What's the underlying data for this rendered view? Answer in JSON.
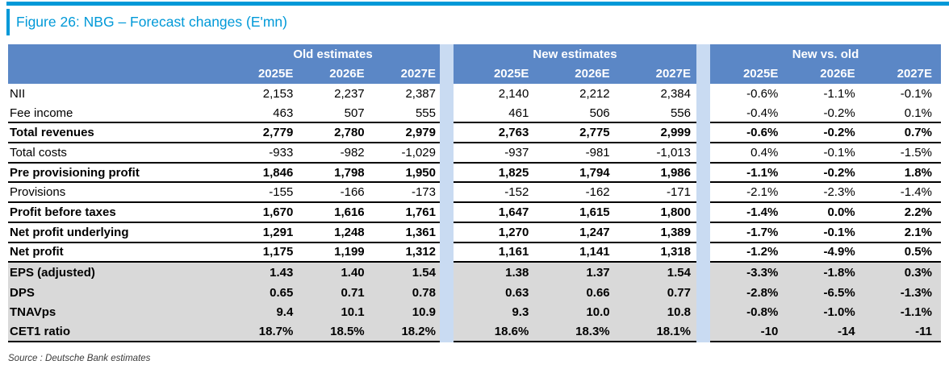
{
  "figure": {
    "title": "Figure 26: NBG – Forecast changes (E'mn)",
    "source": "Source : Deutsche Bank estimates"
  },
  "colors": {
    "accent_blue": "#0099D8",
    "header_blue": "#5B87C6",
    "divider_blue": "#C9DBF2",
    "section_gray": "#D9D9D9",
    "rule_black": "#000000"
  },
  "table": {
    "groups": [
      {
        "label": "Old estimates",
        "years": [
          "2025E",
          "2026E",
          "2027E"
        ]
      },
      {
        "label": "New estimates",
        "years": [
          "2025E",
          "2026E",
          "2027E"
        ]
      },
      {
        "label": "New vs. old",
        "years": [
          "2025E",
          "2026E",
          "2027E"
        ]
      }
    ],
    "rows": [
      {
        "label": "NII",
        "bold": false,
        "gray": false,
        "rule": false,
        "old": [
          "2,153",
          "2,237",
          "2,387"
        ],
        "new": [
          "2,140",
          "2,212",
          "2,384"
        ],
        "delta": [
          "-0.6%",
          "-1.1%",
          "-0.1%"
        ]
      },
      {
        "label": "Fee income",
        "bold": false,
        "gray": false,
        "rule": true,
        "old": [
          "463",
          "507",
          "555"
        ],
        "new": [
          "461",
          "506",
          "556"
        ],
        "delta": [
          "-0.4%",
          "-0.2%",
          "0.1%"
        ]
      },
      {
        "label": "Total revenues",
        "bold": true,
        "gray": false,
        "rule": true,
        "old": [
          "2,779",
          "2,780",
          "2,979"
        ],
        "new": [
          "2,763",
          "2,775",
          "2,999"
        ],
        "delta": [
          "-0.6%",
          "-0.2%",
          "0.7%"
        ]
      },
      {
        "label": "Total costs",
        "bold": false,
        "gray": false,
        "rule": true,
        "old": [
          "-933",
          "-982",
          "-1,029"
        ],
        "new": [
          "-937",
          "-981",
          "-1,013"
        ],
        "delta": [
          "0.4%",
          "-0.1%",
          "-1.5%"
        ]
      },
      {
        "label": "Pre provisioning profit",
        "bold": true,
        "gray": false,
        "rule": true,
        "old": [
          "1,846",
          "1,798",
          "1,950"
        ],
        "new": [
          "1,825",
          "1,794",
          "1,986"
        ],
        "delta": [
          "-1.1%",
          "-0.2%",
          "1.8%"
        ]
      },
      {
        "label": "Provisions",
        "bold": false,
        "gray": false,
        "rule": true,
        "old": [
          "-155",
          "-166",
          "-173"
        ],
        "new": [
          "-152",
          "-162",
          "-171"
        ],
        "delta": [
          "-2.1%",
          "-2.3%",
          "-1.4%"
        ]
      },
      {
        "label": "Profit before taxes",
        "bold": true,
        "gray": false,
        "rule": true,
        "old": [
          "1,670",
          "1,616",
          "1,761"
        ],
        "new": [
          "1,647",
          "1,615",
          "1,800"
        ],
        "delta": [
          "-1.4%",
          "0.0%",
          "2.2%"
        ]
      },
      {
        "label": "Net profit underlying",
        "bold": true,
        "gray": false,
        "rule": true,
        "old": [
          "1,291",
          "1,248",
          "1,361"
        ],
        "new": [
          "1,270",
          "1,247",
          "1,389"
        ],
        "delta": [
          "-1.7%",
          "-0.1%",
          "2.1%"
        ]
      },
      {
        "label": "Net profit",
        "bold": true,
        "gray": false,
        "rule": true,
        "old": [
          "1,175",
          "1,199",
          "1,312"
        ],
        "new": [
          "1,161",
          "1,141",
          "1,318"
        ],
        "delta": [
          "-1.2%",
          "-4.9%",
          "0.5%"
        ]
      },
      {
        "label": "EPS (adjusted)",
        "bold": true,
        "gray": true,
        "rule": false,
        "old": [
          "1.43",
          "1.40",
          "1.54"
        ],
        "new": [
          "1.38",
          "1.37",
          "1.54"
        ],
        "delta": [
          "-3.3%",
          "-1.8%",
          "0.3%"
        ]
      },
      {
        "label": "DPS",
        "bold": true,
        "gray": true,
        "rule": false,
        "old": [
          "0.65",
          "0.71",
          "0.78"
        ],
        "new": [
          "0.63",
          "0.66",
          "0.77"
        ],
        "delta": [
          "-2.8%",
          "-6.5%",
          "-1.3%"
        ]
      },
      {
        "label": "TNAVps",
        "bold": true,
        "gray": true,
        "rule": false,
        "old": [
          "9.4",
          "10.1",
          "10.9"
        ],
        "new": [
          "9.3",
          "10.0",
          "10.8"
        ],
        "delta": [
          "-0.8%",
          "-1.0%",
          "-1.1%"
        ]
      },
      {
        "label": "CET1 ratio",
        "bold": true,
        "gray": true,
        "rule": true,
        "old": [
          "18.7%",
          "18.5%",
          "18.2%"
        ],
        "new": [
          "18.6%",
          "18.3%",
          "18.1%"
        ],
        "delta": [
          "-10",
          "-14",
          "-11"
        ]
      }
    ]
  }
}
